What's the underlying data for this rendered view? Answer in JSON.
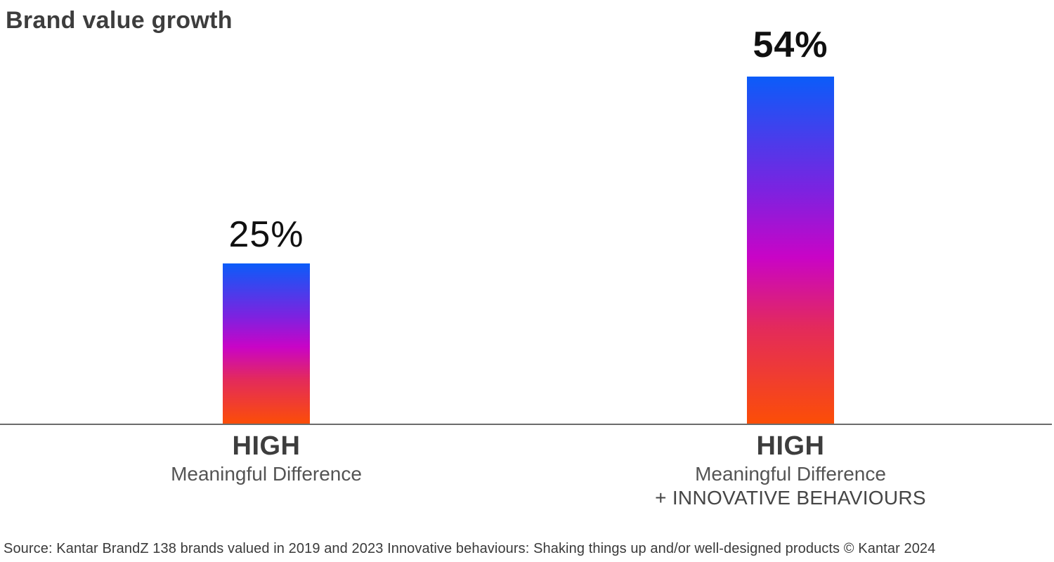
{
  "title": "Brand value growth",
  "source_note": "Source: Kantar BrandZ 138 brands valued in 2019 and 2023 Innovative behaviours: Shaking things up and/or well-designed products © Kantar 2024",
  "colors": {
    "background": "#ffffff",
    "title_text": "#3d3d3d",
    "value_text": "#101010",
    "category_title_text": "#3d3d3d",
    "category_sub_text": "#545454",
    "axis_line": "#6b6b6b",
    "source_text": "#3a3a3a",
    "bar_gradient_top_blue": "#0b5cf9",
    "bar_gradient_violet": "#7d22e0",
    "bar_gradient_magenta": "#c904c6",
    "bar_gradient_pink_red": "#e32a5c",
    "bar_gradient_bottom_orange": "#fc4e06"
  },
  "chart_data": {
    "type": "bar",
    "title": "Brand value growth",
    "categories": [
      "HIGH Meaningful Difference",
      "HIGH Meaningful Difference + INNOVATIVE BEHAVIOURS"
    ],
    "values": [
      25,
      54
    ],
    "unit": "%",
    "xlabel": "",
    "ylabel": "",
    "ylim": [
      0,
      60
    ],
    "grid": false,
    "legend": false,
    "bar_gradient": [
      "#0b5cf9",
      "#7d22e0",
      "#c904c6",
      "#e32a5c",
      "#fc4e06"
    ],
    "bars": [
      {
        "value": 25,
        "value_label": "25%",
        "label_title": "HIGH",
        "label_sub1": "Meaningful Difference",
        "label_sub2": ""
      },
      {
        "value": 54,
        "value_label": "54%",
        "label_title": "HIGH",
        "label_sub1": "Meaningful Difference",
        "label_sub2": "+ INNOVATIVE BEHAVIOURS"
      }
    ]
  }
}
